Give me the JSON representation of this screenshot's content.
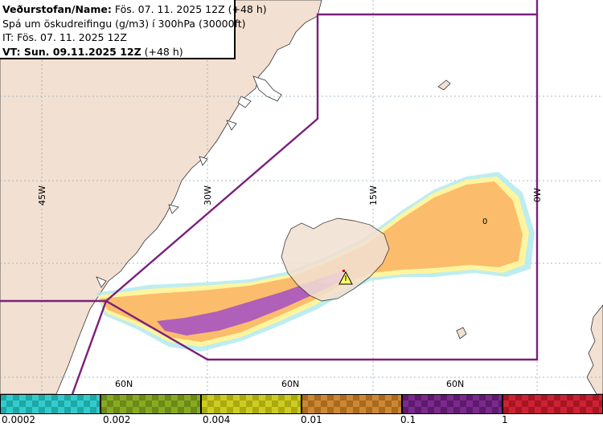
{
  "header": {
    "line1_bold": "Veðurstofan/Name:",
    "line1_rest": " Fös. 07. 11. 2025 12Z (+48 h)",
    "line2": "Spá um öskudreifingu (g/m3) í 300hPa (30000ft)",
    "line3": "IT: Fös. 07. 11. 2025 12Z",
    "line4_bold": "VT: Sun. 09.11.2025 12Z",
    "line4_rest": " (+48 h)"
  },
  "map": {
    "lon_labels": [
      "45W",
      "30W",
      "15W",
      "0W"
    ],
    "lat_labels": [
      "60N",
      "60N",
      "60N"
    ],
    "contour_label": "0",
    "colors": {
      "land": "#f2e0d2",
      "sea": "#ffffff",
      "graticule": "#8fa8b5",
      "boundary": "#7b1f7b",
      "coast": "#333333"
    },
    "volcano_icon": "volcano-warning-triangle-icon"
  },
  "legend": {
    "bins": [
      {
        "color": "#33cccc",
        "color2": "#1ea7a7"
      },
      {
        "color": "#88aa22",
        "color2": "#6b8a16"
      },
      {
        "color": "#cccc22",
        "color2": "#aaaa10"
      },
      {
        "color": "#cc8833",
        "color2": "#a86a1e"
      },
      {
        "color": "#7a2a8a",
        "color2": "#5e1a6e"
      },
      {
        "color": "#cc2233",
        "color2": "#a81522"
      }
    ],
    "labels": [
      "0.0002",
      "0.002",
      "0.004",
      "0.01",
      "0.1",
      "1"
    ]
  }
}
